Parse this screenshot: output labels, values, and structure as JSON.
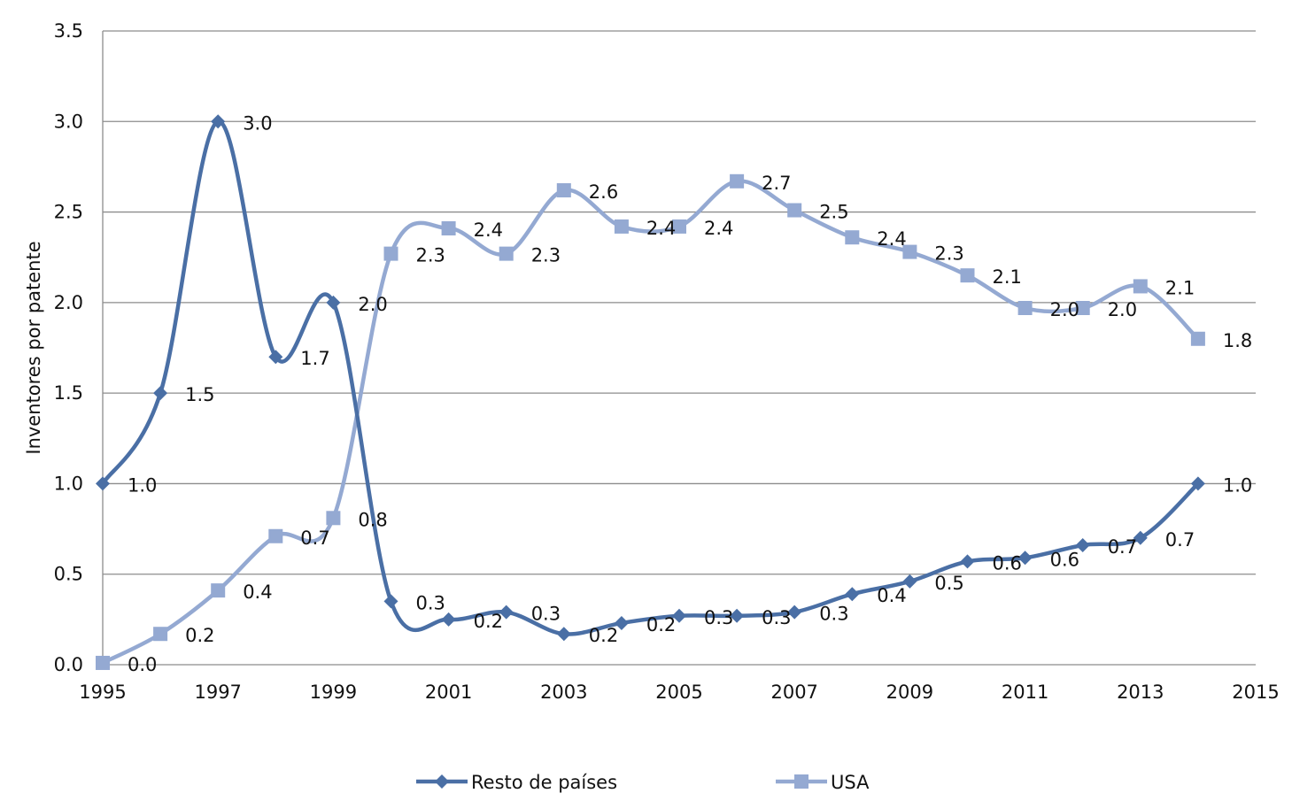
{
  "chart_data": {
    "type": "line",
    "title": "",
    "xlabel": "",
    "ylabel": "Inventores por patente",
    "xlim": [
      1995,
      2015
    ],
    "ylim": [
      0,
      3.5
    ],
    "x_ticks": [
      "1995",
      "1997",
      "1999",
      "2001",
      "2003",
      "2005",
      "2007",
      "2009",
      "2011",
      "2013",
      "2015"
    ],
    "y_ticks": [
      "0.0",
      "0.5",
      "1.0",
      "1.5",
      "2.0",
      "2.5",
      "3.0",
      "3.5"
    ],
    "grid": "horizontal",
    "legend_position": "bottom",
    "x": [
      1995,
      1996,
      1997,
      1998,
      1999,
      2000,
      2001,
      2002,
      2003,
      2004,
      2005,
      2006,
      2007,
      2008,
      2009,
      2010,
      2011,
      2012,
      2013,
      2014
    ],
    "series": [
      {
        "name": "Resto de países",
        "color": "#4a6fa5",
        "marker": "diamond",
        "values": [
          1.0,
          1.5,
          3.0,
          1.7,
          2.0,
          0.35,
          0.25,
          0.29,
          0.17,
          0.23,
          0.27,
          0.27,
          0.29,
          0.39,
          0.46,
          0.57,
          0.59,
          0.66,
          0.7,
          1.0
        ],
        "labels": [
          "1.0",
          "1.5",
          "3.0",
          "1.7",
          "2.0",
          "0.3",
          "0.2",
          "0.3",
          "0.2",
          "0.2",
          "0.3",
          "0.3",
          "0.3",
          "0.4",
          "0.5",
          "0.6",
          "0.6",
          "0.7",
          "0.7",
          "1.0"
        ]
      },
      {
        "name": "USA",
        "color": "#94a9d2",
        "marker": "square",
        "values": [
          0.01,
          0.17,
          0.41,
          0.71,
          0.81,
          2.27,
          2.41,
          2.27,
          2.62,
          2.42,
          2.42,
          2.67,
          2.51,
          2.36,
          2.28,
          2.15,
          1.97,
          1.97,
          2.09,
          1.8
        ],
        "labels": [
          "0.0",
          "0.2",
          "0.4",
          "0.7",
          "0.8",
          "2.3",
          "2.4",
          "2.3",
          "2.6",
          "2.4",
          "2.4",
          "2.7",
          "2.5",
          "2.4",
          "2.3",
          "2.1",
          "2.0",
          "2.0",
          "2.1",
          "1.8"
        ]
      }
    ]
  }
}
